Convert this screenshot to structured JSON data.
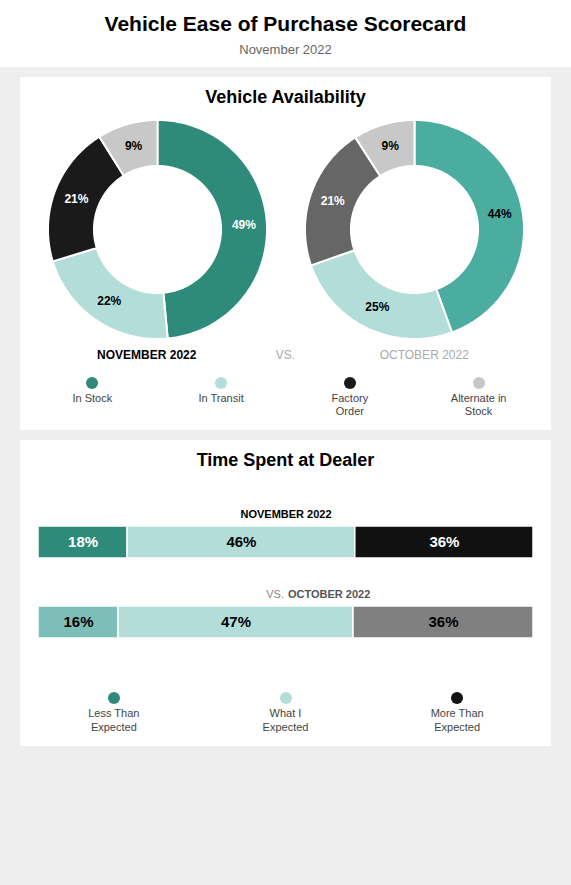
{
  "title": "Vehicle Ease of Purchase Scorecard",
  "subtitle": "November 2022",
  "chart_data": [
    {
      "type": "pie",
      "title": "Vehicle Availability",
      "categories": [
        "In Stock",
        "In Transit",
        "Factory\nOrder",
        "Alternate in\nStock"
      ],
      "series": [
        {
          "name": "NOVEMBER 2022",
          "values": [
            49,
            22,
            21,
            9
          ],
          "value_labels": [
            "49%",
            "22%",
            "21%",
            "9%"
          ],
          "colors": [
            "#2e8b7a",
            "#b2ddd8",
            "#1a1a1a",
            "#c8c8c8"
          ]
        },
        {
          "name": "OCTOBER 2022",
          "values": [
            44,
            25,
            21,
            9
          ],
          "value_labels": [
            "44%",
            "25%",
            "21%",
            "9%"
          ],
          "colors": [
            "#4aada0",
            "#b2ddd8",
            "#666666",
            "#c8c8c8"
          ]
        }
      ],
      "annotations": [
        "VS."
      ],
      "data_labels": true,
      "legend": "bottom"
    },
    {
      "type": "bar",
      "title": "Time Spent at Dealer",
      "orientation": "horizontal",
      "stacked": true,
      "categories": [
        "NOVEMBER 2022",
        "OCTOBER 2022"
      ],
      "series": [
        {
          "name": "Less Than\nExpected",
          "values": [
            18,
            16
          ],
          "value_labels": [
            "18%",
            "16%"
          ],
          "colors": [
            "#2e8b7a",
            "#7bbfb8"
          ]
        },
        {
          "name": "What I\nExpected",
          "values": [
            46,
            47
          ],
          "value_labels": [
            "46%",
            "47%"
          ],
          "colors": [
            "#b2ddd8",
            "#b2ddd8"
          ]
        },
        {
          "name": "More Than\nExpected",
          "values": [
            36,
            36
          ],
          "value_labels": [
            "36%",
            "36%"
          ],
          "colors": [
            "#111111",
            "#808080"
          ]
        }
      ],
      "annotations": [
        "VS."
      ],
      "data_labels": true,
      "tick_labels": "y",
      "legend": "bottom"
    }
  ]
}
